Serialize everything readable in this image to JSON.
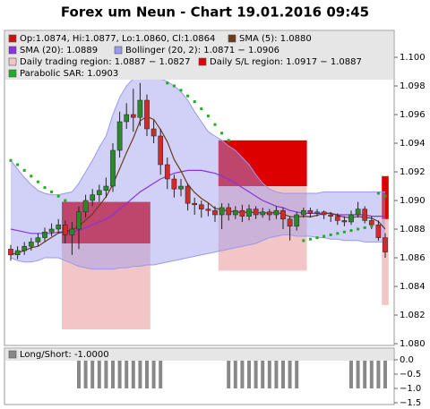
{
  "chart_data": [
    {
      "type": "candlestick",
      "title": "Forex um Neun - Chart 19.01.2016 09:45",
      "legend": [
        {
          "label": "Op:1.0874, Hi:1.0877, Lo:1.0860, Cl:1.0864",
          "color": "#cc1111"
        },
        {
          "label": "SMA (5): 1.0880",
          "color": "#6b3a1a"
        },
        {
          "label": "SMA (20): 1.0889",
          "color": "#8833dd"
        },
        {
          "label": "Bollinger (20, 2): 1.0871 − 1.0906",
          "color": "#9999ee"
        },
        {
          "label": "Daily trading region: 1.0887 − 1.0827",
          "color": "#f2c6c6"
        },
        {
          "label": "Daily S/L region: 1.0917 − 1.0887",
          "color": "#dd0000"
        },
        {
          "label": "Parabolic SAR: 1.0903",
          "color": "#22aa22"
        }
      ],
      "up_color": "#2a8a2a",
      "down_color": "#d02a2a",
      "open": [
        1.0866,
        1.0862,
        1.0865,
        1.0868,
        1.0871,
        1.0874,
        1.0878,
        1.088,
        1.0883,
        1.0876,
        1.088,
        1.0892,
        1.09,
        1.0904,
        1.0907,
        1.091,
        1.0935,
        1.0955,
        1.096,
        1.0958,
        1.097,
        1.095,
        1.0945,
        1.0925,
        1.0915,
        1.0908,
        1.091,
        1.0898,
        1.0897,
        1.0894,
        1.0893,
        1.089,
        1.0895,
        1.089,
        1.0893,
        1.0889,
        1.0894,
        1.089,
        1.0892,
        1.089,
        1.0893,
        1.0887,
        1.0882,
        1.089,
        1.0893,
        1.0891,
        1.0892,
        1.089,
        1.0889,
        1.0886,
        1.0885,
        1.089,
        1.0894,
        1.0886,
        1.0883,
        1.0874
      ],
      "high": [
        1.0869,
        1.0868,
        1.0871,
        1.0874,
        1.0877,
        1.0881,
        1.0884,
        1.0887,
        1.0886,
        1.0885,
        1.0896,
        1.0904,
        1.0908,
        1.0911,
        1.0916,
        1.094,
        1.0962,
        1.0968,
        1.0978,
        1.0982,
        1.0974,
        1.0956,
        1.095,
        1.093,
        1.0918,
        1.0915,
        1.0912,
        1.0902,
        1.09,
        1.0898,
        1.0896,
        1.0898,
        1.0898,
        1.0896,
        1.0897,
        1.0897,
        1.0896,
        1.0895,
        1.0894,
        1.0896,
        1.0895,
        1.0889,
        1.0892,
        1.0895,
        1.0895,
        1.0894,
        1.0893,
        1.0892,
        1.0891,
        1.0889,
        1.0893,
        1.0899,
        1.0896,
        1.0889,
        1.0886,
        1.0877
      ],
      "low": [
        1.0858,
        1.0859,
        1.0862,
        1.0865,
        1.0868,
        1.0871,
        1.0875,
        1.0877,
        1.087,
        1.0862,
        1.0866,
        1.0888,
        1.0896,
        1.0899,
        1.0902,
        1.0906,
        1.093,
        1.095,
        1.0948,
        1.0952,
        1.0945,
        1.094,
        1.0918,
        1.0908,
        1.0902,
        1.0903,
        1.0893,
        1.089,
        1.0888,
        1.0889,
        1.0885,
        1.088,
        1.0886,
        1.0887,
        1.0885,
        1.0886,
        1.0887,
        1.0888,
        1.0886,
        1.0887,
        1.088,
        1.0872,
        1.0879,
        1.0888,
        1.0888,
        1.0889,
        1.0887,
        1.0885,
        1.0883,
        1.0882,
        1.0883,
        1.0888,
        1.0884,
        1.088,
        1.0872,
        1.086
      ],
      "close": [
        1.0862,
        1.0865,
        1.0868,
        1.0871,
        1.0874,
        1.0878,
        1.088,
        1.0883,
        1.0876,
        1.088,
        1.0892,
        1.09,
        1.0904,
        1.0907,
        1.091,
        1.0935,
        1.0955,
        1.096,
        1.0958,
        1.097,
        1.095,
        1.0945,
        1.0925,
        1.0915,
        1.0908,
        1.091,
        1.0898,
        1.0897,
        1.0894,
        1.0893,
        1.089,
        1.0895,
        1.089,
        1.0893,
        1.0889,
        1.0894,
        1.089,
        1.0892,
        1.089,
        1.0893,
        1.0887,
        1.0882,
        1.089,
        1.0893,
        1.0891,
        1.0892,
        1.089,
        1.0889,
        1.0886,
        1.0885,
        1.089,
        1.0894,
        1.0886,
        1.0883,
        1.0874,
        1.0864
      ],
      "sma5": [
        1.0862,
        1.08635,
        1.0865,
        1.0867,
        1.0868,
        1.08712,
        1.08742,
        1.08772,
        1.08782,
        1.08794,
        1.08822,
        1.08862,
        1.08904,
        1.08966,
        1.09026,
        1.09112,
        1.09222,
        1.09334,
        1.09436,
        1.09556,
        1.09586,
        1.09566,
        1.09496,
        1.0941,
        1.09286,
        1.09206,
        1.09112,
        1.09056,
        1.09014,
        1.08984,
        1.08944,
        1.08938,
        1.08924,
        1.08922,
        1.08914,
        1.08922,
        1.08912,
        1.08916,
        1.0891,
        1.08918,
        1.08904,
        1.08888,
        1.08884,
        1.0889,
        1.08886,
        1.08896,
        1.08912,
        1.0891,
        1.08896,
        1.08884,
        1.0888,
        1.08888,
        1.08882,
        1.08876,
        1.08854,
        1.088
      ],
      "sma20": [
        1.088,
        1.0879,
        1.0878,
        1.0877,
        1.0877,
        1.0877,
        1.0877,
        1.0878,
        1.0878,
        1.0878,
        1.0879,
        1.0881,
        1.0883,
        1.0885,
        1.0887,
        1.089,
        1.0894,
        1.0898,
        1.0902,
        1.0906,
        1.0909,
        1.0912,
        1.0915,
        1.0917,
        1.0919,
        1.092,
        1.0921,
        1.0921,
        1.0921,
        1.092,
        1.0919,
        1.0917,
        1.0915,
        1.0912,
        1.0909,
        1.0906,
        1.0903,
        1.09,
        1.0898,
        1.0896,
        1.0895,
        1.0893,
        1.0892,
        1.0891,
        1.0891,
        1.0891,
        1.0891,
        1.0891,
        1.089,
        1.089,
        1.089,
        1.089,
        1.089,
        1.0889,
        1.0889,
        1.0889
      ],
      "bollinger_upper": [
        1.0928,
        1.0922,
        1.0916,
        1.0911,
        1.0907,
        1.0905,
        1.0904,
        1.0904,
        1.0905,
        1.0906,
        1.0912,
        1.092,
        1.0928,
        1.0937,
        1.0945,
        1.096,
        1.0972,
        1.098,
        1.0985,
        1.0988,
        1.0988,
        1.0987,
        1.0985,
        1.0983,
        1.098,
        1.0976,
        1.097,
        1.0962,
        1.0955,
        1.0948,
        1.0945,
        1.0942,
        1.0938,
        1.0935,
        1.093,
        1.0925,
        1.0918,
        1.0912,
        1.0908,
        1.0906,
        1.0905,
        1.0905,
        1.0905,
        1.0905,
        1.0905,
        1.0905,
        1.0906,
        1.0906,
        1.0906,
        1.0906,
        1.0906,
        1.0906,
        1.0906,
        1.0906,
        1.0906,
        1.0906
      ],
      "bollinger_lower": [
        1.086,
        1.0858,
        1.0857,
        1.0857,
        1.0858,
        1.086,
        1.086,
        1.086,
        1.0858,
        1.0856,
        1.0854,
        1.0853,
        1.0852,
        1.0852,
        1.0852,
        1.0852,
        1.0853,
        1.0853,
        1.0854,
        1.0854,
        1.0855,
        1.0855,
        1.0856,
        1.0857,
        1.0858,
        1.0859,
        1.086,
        1.0861,
        1.0862,
        1.0863,
        1.0864,
        1.0865,
        1.0866,
        1.0867,
        1.0868,
        1.0869,
        1.087,
        1.0872,
        1.0874,
        1.0875,
        1.0876,
        1.0876,
        1.0875,
        1.0875,
        1.0875,
        1.0874,
        1.0874,
        1.0873,
        1.0873,
        1.0872,
        1.0872,
        1.0872,
        1.0871,
        1.0871,
        1.0871,
        1.0871
      ],
      "sar": [
        1.0928,
        1.0925,
        1.0921,
        1.0917,
        1.0913,
        1.0909,
        1.0906,
        1.0903,
        1.09,
        null,
        null,
        null,
        null,
        null,
        null,
        null,
        null,
        null,
        null,
        null,
        null,
        null,
        null,
        1.0982,
        1.098,
        1.0977,
        1.0973,
        1.0969,
        1.0964,
        1.0959,
        1.0953,
        1.0947,
        1.0942,
        null,
        null,
        null,
        null,
        null,
        null,
        null,
        null,
        null,
        null,
        1.0872,
        1.0873,
        1.0874,
        1.0875,
        1.0876,
        1.0877,
        1.0878,
        1.0879,
        1.088,
        1.0881,
        1.0882,
        1.0905,
        1.0903
      ],
      "regions": [
        {
          "start": 8,
          "end": 20,
          "sl": [
            1.087,
            1.0899
          ],
          "trade": [
            1.081,
            1.087
          ]
        },
        {
          "start": 31,
          "end": 43,
          "sl": [
            1.091,
            1.0942
          ],
          "trade": [
            1.0851,
            1.091
          ]
        },
        {
          "start": 55,
          "end": 55,
          "sl": [
            1.0887,
            1.0917
          ],
          "trade": [
            1.0827,
            1.0887
          ]
        }
      ],
      "ylim": [
        1.079875,
        1.101875
      ],
      "yticks": [
        {
          "value": 1.08,
          "label": "1.080"
        },
        1.082,
        1.084,
        1.086,
        1.088,
        {
          "value": 1.09,
          "label": "1.090"
        },
        1.092,
        1.094,
        1.096,
        1.098,
        {
          "value": 1.1,
          "label": "1.100"
        }
      ]
    },
    {
      "type": "bar",
      "legend": [
        {
          "label": "Long/Short: -1.0000",
          "color": "#888888"
        }
      ],
      "color": "#888888",
      "values": [
        0,
        0,
        0,
        0,
        0,
        0,
        0,
        0,
        0,
        0,
        -1,
        -1,
        -1,
        -1,
        -1,
        -1,
        -1,
        -1,
        -1,
        -1,
        -1,
        -1,
        -1,
        0,
        0,
        0,
        0,
        0,
        0,
        0,
        0,
        0,
        -1,
        -1,
        -1,
        -1,
        -1,
        -1,
        -1,
        -1,
        -1,
        -1,
        -1,
        0,
        0,
        0,
        0,
        0,
        0,
        0,
        -1,
        -1,
        -1,
        -1,
        -1,
        -1
      ],
      "ylim": [
        -1.5625,
        0.40625
      ],
      "yticks": [
        {
          "value": 0,
          "label": "0.0"
        },
        {
          "value": -0.5,
          "label": "−0.5"
        },
        {
          "value": -1,
          "label": "−1.0"
        },
        {
          "value": -1.5,
          "label": "−1.5"
        }
      ]
    }
  ]
}
